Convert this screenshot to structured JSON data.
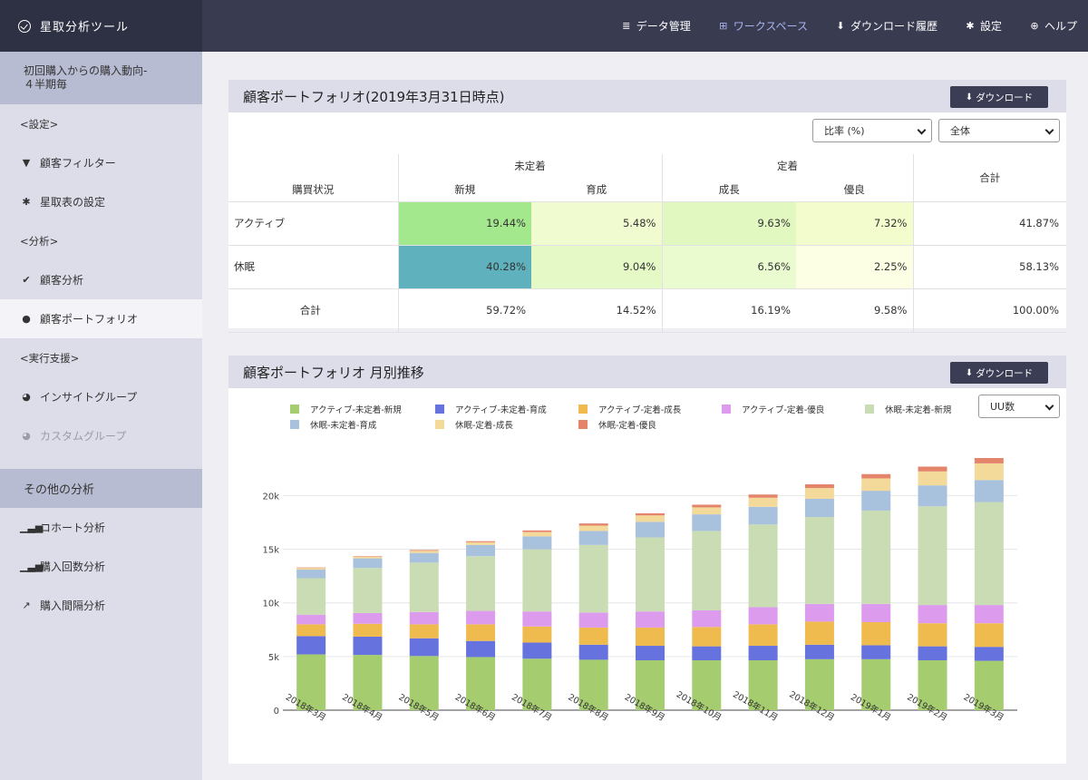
{
  "app": {
    "title": "星取分析ツール"
  },
  "nav": [
    {
      "name": "nav-data-management",
      "icon": "database-icon",
      "glyph": "≣",
      "label": "データ管理",
      "active": false
    },
    {
      "name": "nav-workspace",
      "icon": "workspace-icon",
      "glyph": "⊞",
      "label": "ワークスペース",
      "active": true
    },
    {
      "name": "nav-download-history",
      "icon": "download-icon",
      "glyph": "⬇",
      "label": "ダウンロード履歴",
      "active": false
    },
    {
      "name": "nav-settings",
      "icon": "gear-icon",
      "glyph": "✱",
      "label": "設定",
      "active": false
    },
    {
      "name": "nav-help",
      "icon": "globe-icon",
      "glyph": "⊕",
      "label": "ヘルプ",
      "active": false
    }
  ],
  "sidebar": {
    "header_line1": "初回購入からの購入動向-",
    "header_line2": "４半期毎",
    "group_settings": "<設定>",
    "item_customer_filter": "顧客フィルター",
    "item_star_settings": "星取表の設定",
    "group_analysis": "<分析>",
    "item_customer_analysis": "顧客分析",
    "item_customer_portfolio": "顧客ポートフォリオ",
    "group_execution": "<実行支援>",
    "item_insight_group": "インサイトグループ",
    "item_custom_group": "カスタムグループ",
    "section_other": "その他の分析",
    "item_cohort": "コホート分析",
    "item_purchase_count": "購入回数分析",
    "item_purchase_interval": "購入間隔分析"
  },
  "portfolio": {
    "title": "顧客ポートフォリオ(2019年3月31日時点)",
    "download_label": "ダウンロード",
    "select_metric": "比率 (%)",
    "select_scope": "全体",
    "header_status": "購買状況",
    "header_unfixed": "未定着",
    "header_fixed": "定着",
    "header_total": "合計",
    "sub_new": "新規",
    "sub_nurture": "育成",
    "sub_growth": "成長",
    "sub_excellent": "優良",
    "rows": [
      {
        "label": "アクティブ",
        "cells": [
          "19.44%",
          "5.48%",
          "9.63%",
          "7.32%"
        ],
        "total": "41.87%"
      },
      {
        "label": "休眠",
        "cells": [
          "40.28%",
          "9.04%",
          "6.56%",
          "2.25%"
        ],
        "total": "58.13%"
      }
    ],
    "total_row": {
      "label": "合計",
      "cells": [
        "59.72%",
        "14.52%",
        "16.19%",
        "9.58%"
      ],
      "total": "100.00%"
    },
    "heat_colors": [
      [
        "#a3e88d",
        "#f0fbd0",
        "#e1f8c0",
        "#f2fccc"
      ],
      [
        "#5fb1bd",
        "#e4f9c6",
        "#eafbcf",
        "#fcffe4"
      ]
    ]
  },
  "trend": {
    "title": "顧客ポートフォリオ 月別推移",
    "download_label": "ダウンロード",
    "select_unit": "UU数"
  },
  "chart_data": {
    "type": "bar",
    "stacked": true,
    "categories": [
      "2018年3月",
      "2018年4月",
      "2018年5月",
      "2018年6月",
      "2018年7月",
      "2018年8月",
      "2018年9月",
      "2018年10月",
      "2018年11月",
      "2018年12月",
      "2019年1月",
      "2019年2月",
      "2019年3月"
    ],
    "ylim": [
      0,
      23500
    ],
    "yticks": [
      0,
      5000,
      10000,
      15000,
      20000
    ],
    "ytick_labels": [
      "0",
      "5k",
      "10k",
      "15k",
      "20k"
    ],
    "legend_position": "top",
    "series": [
      {
        "name": "アクティブ-未定着-新規",
        "color": "#a5cc6e",
        "values": [
          5200,
          5150,
          5050,
          4950,
          4800,
          4700,
          4650,
          4650,
          4650,
          4750,
          4750,
          4650,
          4600
        ]
      },
      {
        "name": "アクティブ-未定着-育成",
        "color": "#6672de",
        "values": [
          1700,
          1700,
          1650,
          1500,
          1500,
          1400,
          1350,
          1300,
          1350,
          1350,
          1300,
          1300,
          1300
        ]
      },
      {
        "name": "アクティブ-定着-成長",
        "color": "#f0bb4e",
        "values": [
          1100,
          1200,
          1300,
          1550,
          1500,
          1600,
          1700,
          1800,
          2000,
          2150,
          2150,
          2150,
          2200
        ]
      },
      {
        "name": "アクティブ-定着-優良",
        "color": "#dd9bee",
        "values": [
          900,
          1000,
          1150,
          1250,
          1400,
          1400,
          1500,
          1550,
          1600,
          1650,
          1700,
          1700,
          1700
        ]
      },
      {
        "name": "休眠-未定着-新規",
        "color": "#cadcb4",
        "values": [
          3400,
          4200,
          4600,
          5100,
          5800,
          6300,
          6900,
          7400,
          7700,
          8100,
          8700,
          9200,
          9600
        ]
      },
      {
        "name": "休眠-未定着-育成",
        "color": "#a8c2de",
        "values": [
          800,
          900,
          900,
          1050,
          1200,
          1300,
          1450,
          1550,
          1650,
          1700,
          1850,
          1950,
          2050
        ]
      },
      {
        "name": "休眠-定着-成長",
        "color": "#f3d99a",
        "values": [
          150,
          150,
          200,
          250,
          400,
          500,
          600,
          650,
          850,
          1000,
          1150,
          1300,
          1550
        ]
      },
      {
        "name": "休眠-定着-優良",
        "color": "#e4856b",
        "values": [
          50,
          50,
          80,
          100,
          150,
          200,
          200,
          250,
          300,
          350,
          400,
          450,
          500
        ]
      }
    ]
  }
}
